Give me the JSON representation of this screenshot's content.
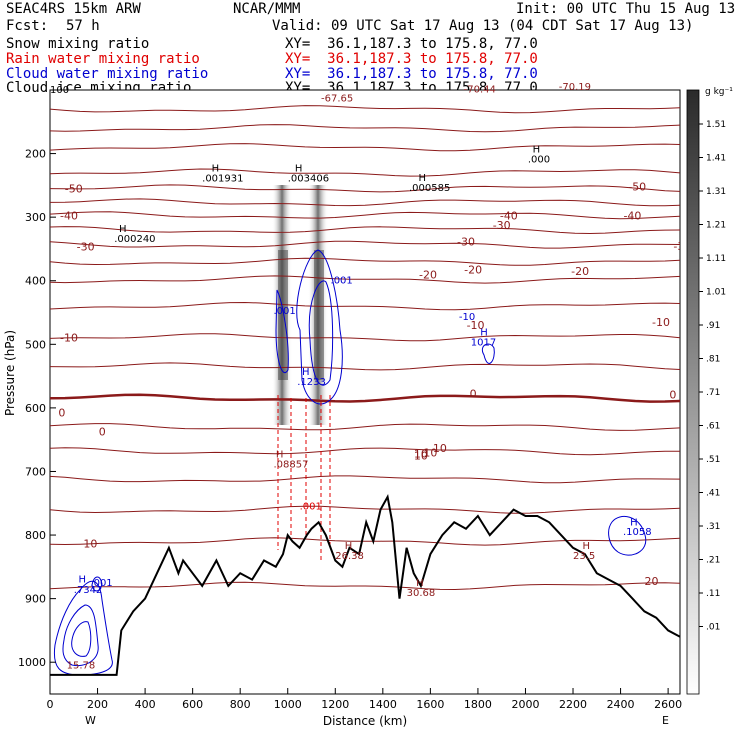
{
  "header": {
    "model": "SEAC4RS 15km ARW",
    "org": "NCAR/MMM",
    "init": "Init: 00 UTC Thu 15 Aug 13",
    "fcst_label": "Fcst:",
    "fcst_value": "57 h",
    "valid": "Valid: 09 UTC Sat 17 Aug 13 (04 CDT Sat 17 Aug 13)"
  },
  "fields": [
    {
      "name": "Snow mixing ratio",
      "xy": "XY=  36.1,187.3 to 175.8, 77.0",
      "color": "#000000"
    },
    {
      "name": "Rain water mixing ratio",
      "xy": "XY=  36.1,187.3 to 175.8, 77.0",
      "color": "#e00000"
    },
    {
      "name": "Cloud water mixing ratio",
      "xy": "XY=  36.1,187.3 to 175.8, 77.0",
      "color": "#0000d0"
    },
    {
      "name": "Cloud ice mixing ratio",
      "xy": "XY=  36.1,187.3 to 175.8, 77.0",
      "color": "#000000"
    }
  ],
  "chart_data": {
    "type": "cross-section",
    "xlabel": "Distance (km)",
    "ylabel": "Pressure (hPa)",
    "xlim": [
      0,
      2650
    ],
    "ylim": [
      1050,
      100
    ],
    "x_ticks": [
      0,
      200,
      400,
      600,
      800,
      1000,
      1200,
      1400,
      1600,
      1800,
      2000,
      2200,
      2400,
      2600
    ],
    "y_ticks": [
      200,
      300,
      400,
      500,
      600,
      700,
      800,
      900,
      1000
    ],
    "y_top_label": "100",
    "x_left_label": "W",
    "x_right_label": "E",
    "colorbar": {
      "unit": "g kg⁻¹",
      "labels": [
        "1.51",
        "1.41",
        "1.31",
        "1.21",
        "1.11",
        "1.01",
        ".91",
        ".81",
        ".71",
        ".61",
        ".51",
        ".41",
        ".31",
        ".21",
        ".11",
        ".01"
      ]
    },
    "colors": {
      "temperature": "#8b1a1a",
      "terrain": "#000000",
      "cloud_water": "#0000d0",
      "rain": "#e00000"
    },
    "terrain": {
      "distance_km": [
        0,
        280,
        300,
        350,
        400,
        450,
        500,
        540,
        560,
        600,
        640,
        700,
        750,
        800,
        850,
        900,
        950,
        980,
        1000,
        1020,
        1050,
        1080,
        1100,
        1130,
        1160,
        1200,
        1230,
        1260,
        1300,
        1330,
        1360,
        1390,
        1420,
        1440,
        1470,
        1500,
        1530,
        1560,
        1600,
        1650,
        1700,
        1750,
        1800,
        1850,
        1900,
        1950,
        2000,
        2050,
        2100,
        2150,
        2200,
        2250,
        2300,
        2350,
        2400,
        2450,
        2500,
        2550,
        2600,
        2650
      ],
      "pressure_hpa": [
        1020,
        1020,
        950,
        920,
        900,
        860,
        820,
        860,
        840,
        860,
        880,
        840,
        880,
        860,
        870,
        840,
        850,
        830,
        800,
        810,
        820,
        800,
        790,
        780,
        800,
        840,
        850,
        820,
        830,
        780,
        810,
        760,
        740,
        780,
        900,
        820,
        860,
        880,
        830,
        800,
        780,
        790,
        770,
        800,
        780,
        760,
        770,
        770,
        780,
        800,
        820,
        830,
        860,
        870,
        880,
        900,
        920,
        930,
        950,
        960
      ]
    },
    "isotherms": [
      {
        "label": "-50",
        "pressure_hpa": 255
      },
      {
        "label": "-40",
        "pressure_hpa": 297
      },
      {
        "label": "-30",
        "pressure_hpa": 343
      },
      {
        "label": "-20",
        "pressure_hpa": 398
      },
      {
        "label": "-10",
        "pressure_hpa": 489
      },
      {
        "label": "0",
        "pressure_hpa": 585
      },
      {
        "label": "10",
        "pressure_hpa": 712
      },
      {
        "label": "20",
        "pressure_hpa": 880
      }
    ],
    "temperature_labels": [
      {
        "text": "-50",
        "d": 100,
        "p": 255
      },
      {
        "text": "-40",
        "d": 1930,
        "p": 297
      },
      {
        "text": "-50",
        "d": 2470,
        "p": 252
      },
      {
        "text": "-40",
        "d": 80,
        "p": 297
      },
      {
        "text": "-40",
        "d": 2450,
        "p": 297
      },
      {
        "text": "-30",
        "d": 2660,
        "p": 345
      },
      {
        "text": "-30",
        "d": 150,
        "p": 346
      },
      {
        "text": "-30",
        "d": 1750,
        "p": 338
      },
      {
        "text": "-30",
        "d": 1900,
        "p": 312
      },
      {
        "text": "-20",
        "d": 1590,
        "p": 390
      },
      {
        "text": "-20",
        "d": 1780,
        "p": 382
      },
      {
        "text": "-20",
        "d": 2230,
        "p": 385
      },
      {
        "text": "-10",
        "d": 2570,
        "p": 465
      },
      {
        "text": "-10",
        "d": 80,
        "p": 489
      },
      {
        "text": "-10",
        "d": 1790,
        "p": 470
      },
      {
        "text": "0",
        "d": 2620,
        "p": 579
      },
      {
        "text": "0",
        "d": 1780,
        "p": 577
      },
      {
        "text": "0",
        "d": 50,
        "p": 607
      },
      {
        "text": "0",
        "d": 220,
        "p": 637
      },
      {
        "text": "10",
        "d": 1560,
        "p": 672
      },
      {
        "text": "10",
        "d": 1560,
        "p": 675
      },
      {
        "text": "10",
        "d": 1640,
        "p": 663
      },
      {
        "text": "10",
        "d": 1600,
        "p": 670
      },
      {
        "text": "10",
        "d": 170,
        "p": 813
      },
      {
        "text": "20",
        "d": 2530,
        "p": 872
      }
    ],
    "point_labels": [
      {
        "text": "-67.65",
        "d": 1140,
        "p": 118,
        "color": "#8b1a1a"
      },
      {
        "text": "-70.44",
        "d": 1740,
        "p": 104,
        "color": "#8b1a1a"
      },
      {
        "text": "-70.19",
        "d": 2140,
        "p": 100,
        "color": "#8b1a1a"
      },
      {
        "text": "H",
        "d": 680,
        "p": 228,
        "color": "#000000"
      },
      {
        "text": ".001931",
        "d": 640,
        "p": 244,
        "color": "#000000"
      },
      {
        "text": "H",
        "d": 1030,
        "p": 228,
        "color": "#000000"
      },
      {
        "text": ".003406",
        "d": 1000,
        "p": 244,
        "color": "#000000"
      },
      {
        "text": "H",
        "d": 2030,
        "p": 198,
        "color": "#000000"
      },
      {
        "text": ".000",
        "d": 2010,
        "p": 214,
        "color": "#000000"
      },
      {
        "text": "H",
        "d": 1550,
        "p": 243,
        "color": "#000000"
      },
      {
        "text": ".000585",
        "d": 1510,
        "p": 259,
        "color": "#000000"
      },
      {
        "text": "H",
        "d": 290,
        "p": 323,
        "color": "#000000"
      },
      {
        "text": ".000240",
        "d": 270,
        "p": 339,
        "color": "#000000"
      },
      {
        "text": ".001",
        "d": 1180,
        "p": 404,
        "color": "#0000d0"
      },
      {
        "text": ".001",
        "d": 940,
        "p": 452,
        "color": "#0000d0"
      },
      {
        "text": "-10",
        "d": 1720,
        "p": 462,
        "color": "#0000d0"
      },
      {
        "text": "H",
        "d": 1810,
        "p": 486,
        "color": "#0000d0"
      },
      {
        "text": "1017",
        "d": 1770,
        "p": 502,
        "color": "#0000d0"
      },
      {
        "text": "H",
        "d": 1060,
        "p": 548,
        "color": "#0000d0"
      },
      {
        "text": ".1233",
        "d": 1040,
        "p": 564,
        "color": "#0000d0"
      },
      {
        "text": "H",
        "d": 950,
        "p": 678,
        "color": "#8b1a1a"
      },
      {
        "text": ".08857",
        "d": 940,
        "p": 694,
        "color": "#8b1a1a"
      },
      {
        "text": ".001",
        "d": 1050,
        "p": 760,
        "color": "#e00000"
      },
      {
        "text": "H",
        "d": 1240,
        "p": 822,
        "color": "#8b1a1a"
      },
      {
        "text": "26.38",
        "d": 1200,
        "p": 838,
        "color": "#8b1a1a"
      },
      {
        "text": "H",
        "d": 1540,
        "p": 880,
        "color": "#8b1a1a"
      },
      {
        "text": "30.68",
        "d": 1500,
        "p": 896,
        "color": "#8b1a1a"
      },
      {
        "text": "H",
        "d": 2240,
        "p": 822,
        "color": "#8b1a1a"
      },
      {
        "text": "23.5",
        "d": 2200,
        "p": 838,
        "color": "#8b1a1a"
      },
      {
        "text": "H",
        "d": 2440,
        "p": 785,
        "color": "#0000d0"
      },
      {
        "text": ".1058",
        "d": 2410,
        "p": 800,
        "color": "#0000d0"
      },
      {
        "text": "H",
        "d": 120,
        "p": 875,
        "color": "#0000d0"
      },
      {
        "text": ".7342",
        "d": 100,
        "p": 891,
        "color": "#0000d0"
      },
      {
        "text": ".001",
        "d": 170,
        "p": 880,
        "color": "#0000d0"
      },
      {
        "text": "15.78",
        "d": 70,
        "p": 1010,
        "color": "#8b1a1a"
      }
    ]
  }
}
